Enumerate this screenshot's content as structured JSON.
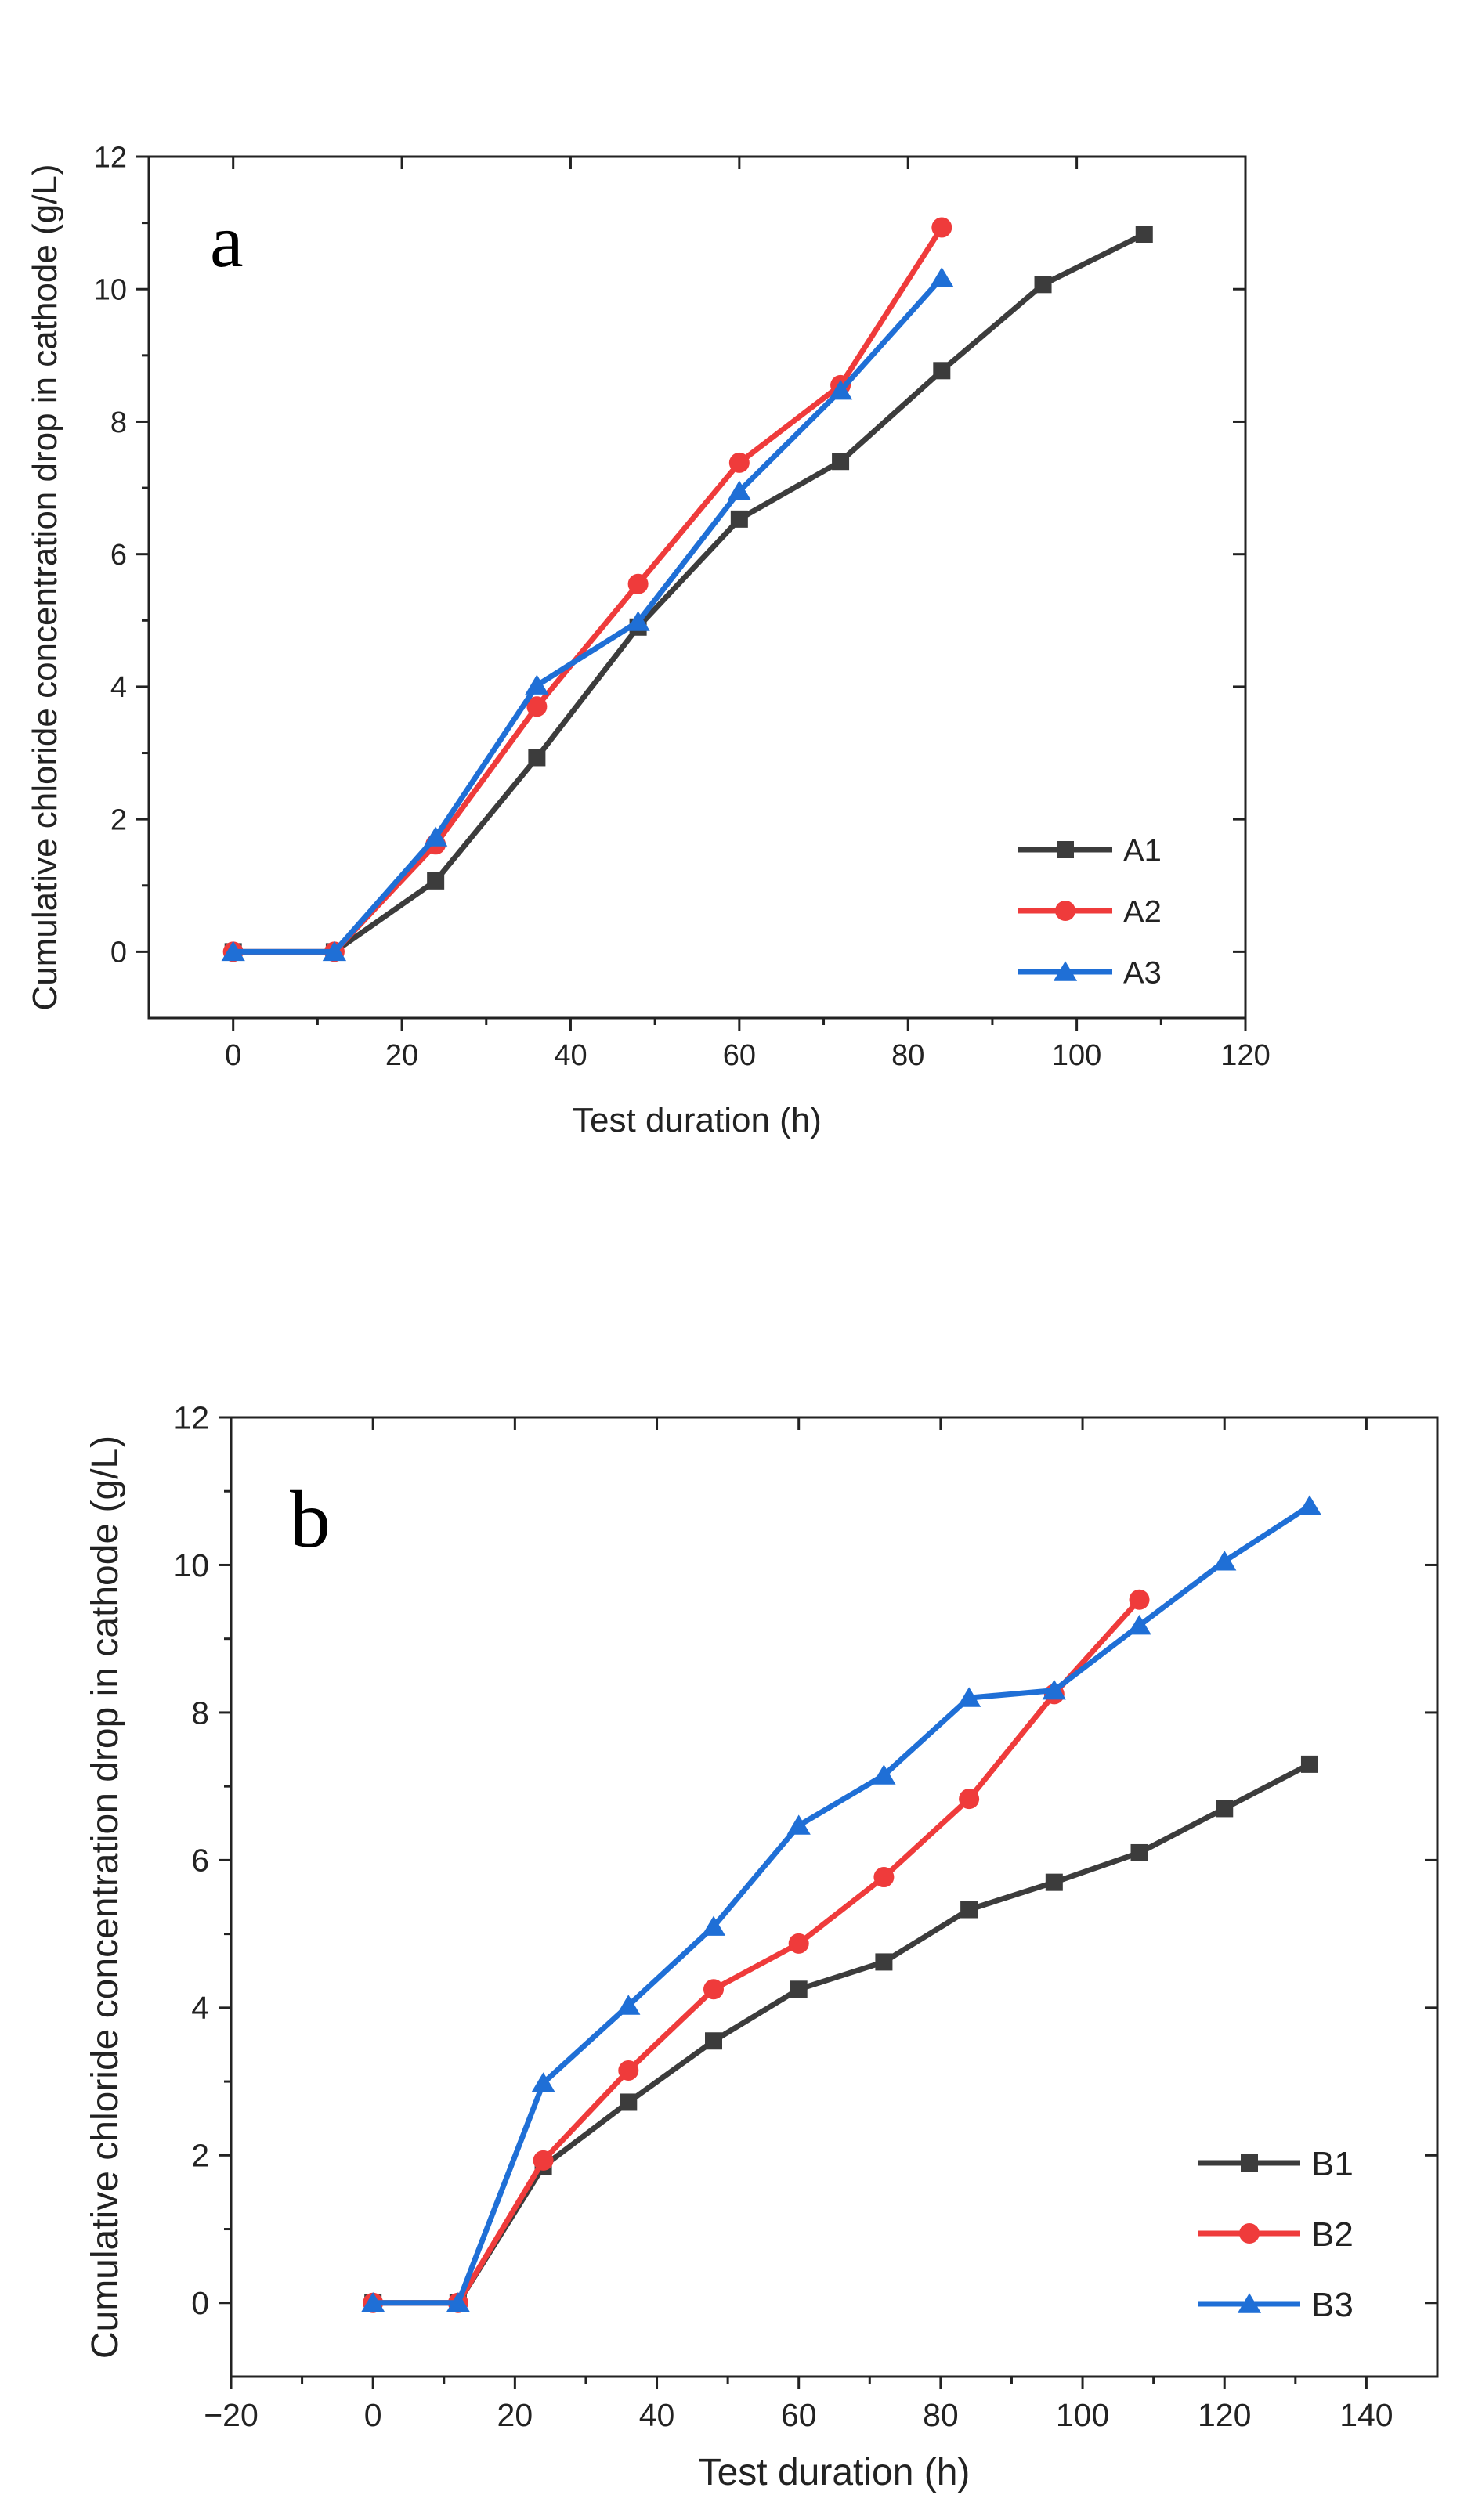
{
  "chart_data": [
    {
      "type": "line",
      "panel_label": "a",
      "xlabel": "Test duration (h)",
      "ylabel": "Cumulative chloride concentration drop in cathode (g/L)",
      "xlim": [
        -10,
        120
      ],
      "ylim": [
        -1,
        12
      ],
      "xticks": [
        0,
        20,
        40,
        60,
        80,
        100,
        120
      ],
      "yticks": [
        0,
        2,
        4,
        6,
        8,
        10,
        12
      ],
      "xtick_labels": [
        "0",
        "20",
        "40",
        "60",
        "80",
        "100",
        "120"
      ],
      "ytick_labels": [
        "0",
        "2",
        "4",
        "6",
        "8",
        "10",
        "12"
      ],
      "legend_position": "bottom-right",
      "series": [
        {
          "name": "A1",
          "color": "#3c3c3c",
          "marker": "square",
          "x": [
            0,
            12,
            24,
            36,
            48,
            60,
            72,
            84,
            96,
            108
          ],
          "y": [
            0,
            0,
            1.07,
            2.93,
            4.9,
            6.53,
            7.4,
            8.77,
            10.07,
            10.83
          ]
        },
        {
          "name": "A2",
          "color": "#ef3b3b",
          "marker": "circle",
          "x": [
            0,
            12,
            24,
            36,
            48,
            60,
            72,
            84
          ],
          "y": [
            0,
            0,
            1.62,
            3.7,
            5.55,
            7.38,
            8.55,
            10.93
          ]
        },
        {
          "name": "A3",
          "color": "#1f6fd6",
          "marker": "triangle",
          "x": [
            0,
            12,
            24,
            36,
            48,
            60,
            72,
            84
          ],
          "y": [
            0,
            0,
            1.73,
            4.02,
            4.98,
            6.95,
            8.47,
            10.17
          ]
        }
      ]
    },
    {
      "type": "line",
      "panel_label": "b",
      "xlabel": "Test duration (h)",
      "ylabel": "Cumulative chloride concentration drop in cathode (g/L)",
      "xlim": [
        -20,
        150
      ],
      "ylim": [
        -1,
        12
      ],
      "xticks": [
        -20,
        0,
        20,
        40,
        60,
        80,
        100,
        120,
        140
      ],
      "yticks": [
        0,
        2,
        4,
        6,
        8,
        10,
        12
      ],
      "xtick_labels": [
        "−20",
        "0",
        "20",
        "40",
        "60",
        "80",
        "100",
        "120",
        "140"
      ],
      "ytick_labels": [
        "0",
        "2",
        "4",
        "6",
        "8",
        "10",
        "12"
      ],
      "legend_position": "bottom-right",
      "series": [
        {
          "name": "B1",
          "color": "#3c3c3c",
          "marker": "square",
          "x": [
            0,
            12,
            24,
            36,
            48,
            60,
            72,
            84,
            96,
            108,
            120,
            132
          ],
          "y": [
            0,
            0,
            1.85,
            2.72,
            3.55,
            4.25,
            4.62,
            5.33,
            5.7,
            6.1,
            6.7,
            7.3
          ]
        },
        {
          "name": "B2",
          "color": "#ef3b3b",
          "marker": "circle",
          "x": [
            0,
            12,
            24,
            36,
            48,
            60,
            72,
            84,
            96,
            108
          ],
          "y": [
            0,
            0,
            1.93,
            3.15,
            4.25,
            4.87,
            5.77,
            6.83,
            8.25,
            9.53
          ]
        },
        {
          "name": "B3",
          "color": "#1f6fd6",
          "marker": "triangle",
          "x": [
            0,
            12,
            24,
            36,
            48,
            60,
            72,
            84,
            96,
            108,
            120,
            132
          ],
          "y": [
            0,
            0,
            2.98,
            4.03,
            5.1,
            6.47,
            7.15,
            8.2,
            8.3,
            9.18,
            10.05,
            10.8
          ]
        }
      ]
    }
  ]
}
